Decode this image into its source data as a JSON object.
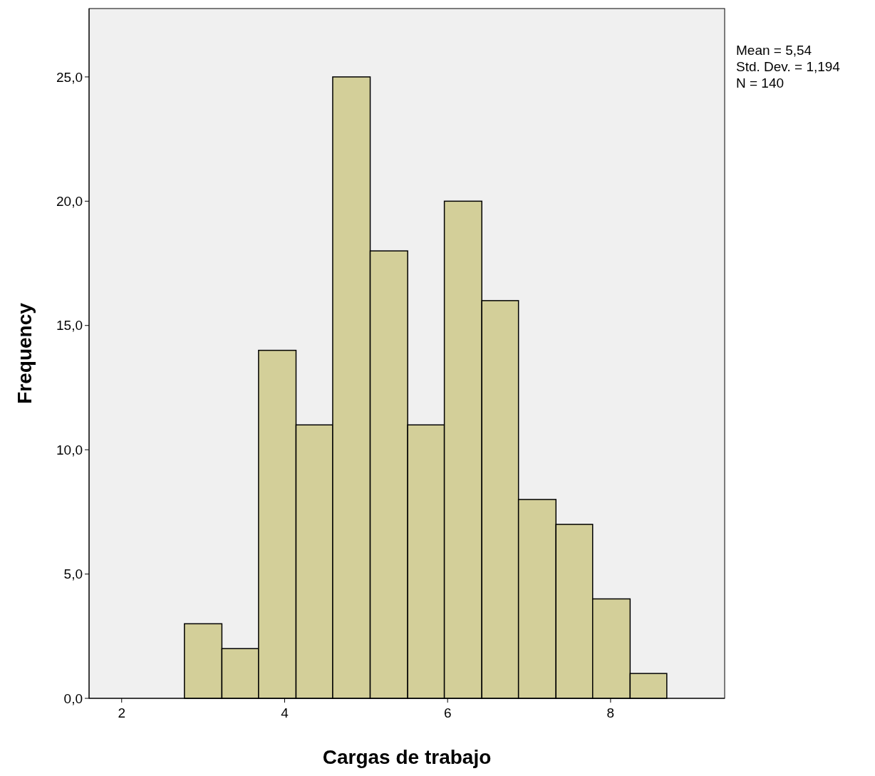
{
  "chart_data": {
    "type": "histogram",
    "xlabel": "Cargas de trabajo",
    "ylabel": "Frequency",
    "bins": [
      2.77,
      3.23,
      3.68,
      4.14,
      4.59,
      5.05,
      5.51,
      5.96,
      6.42,
      6.87,
      7.33,
      7.78,
      8.24,
      8.69
    ],
    "values": [
      3,
      2,
      14,
      11,
      25,
      18,
      11,
      20,
      16,
      8,
      7,
      4,
      1
    ],
    "color": "#d3cf99",
    "xlim": [
      1.6,
      9.4
    ],
    "xticks": [
      2,
      4,
      6,
      8
    ],
    "ylim": [
      0,
      27.75
    ],
    "yticks": [
      {
        "value": 0,
        "label": "0,0"
      },
      {
        "value": 5,
        "label": "5,0"
      },
      {
        "value": 10,
        "label": "10,0"
      },
      {
        "value": 15,
        "label": "15,0"
      },
      {
        "value": 20,
        "label": "20,0"
      },
      {
        "value": 25,
        "label": "25,0"
      }
    ],
    "annotations": [
      "Mean = 5,54",
      "Std. Dev. = 1,194",
      "N = 140"
    ],
    "grid": false
  }
}
